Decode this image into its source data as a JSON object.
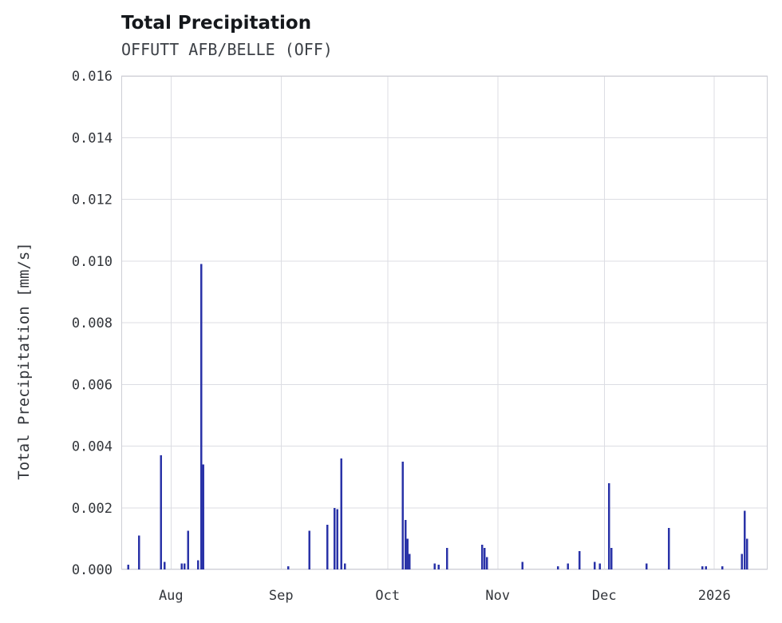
{
  "header": {
    "title": "Total Precipitation",
    "subtitle": "OFFUTT AFB/BELLE (OFF)"
  },
  "chart_data": {
    "type": "bar",
    "title": "Total Precipitation",
    "subtitle": "OFFUTT AFB/BELLE (OFF)",
    "xlabel": "",
    "ylabel": "Total Precipitation [mm/s]",
    "ylim": [
      0,
      0.016
    ],
    "grid": true,
    "legend": "none",
    "bar_color": "#2a33a8",
    "grid_color": "#dcdde3",
    "spine_color": "#cdced5",
    "tick_color": "#33363b",
    "x_domain_days": [
      0,
      182
    ],
    "x_ticks": [
      {
        "label": "Aug",
        "day": 14
      },
      {
        "label": "Sep",
        "day": 45
      },
      {
        "label": "Oct",
        "day": 75
      },
      {
        "label": "Nov",
        "day": 106
      },
      {
        "label": "Dec",
        "day": 136
      },
      {
        "label": "2026",
        "day": 167
      }
    ],
    "y_ticks": [
      {
        "label": "0.000",
        "value": 0.0
      },
      {
        "label": "0.002",
        "value": 0.002
      },
      {
        "label": "0.004",
        "value": 0.004
      },
      {
        "label": "0.006",
        "value": 0.006
      },
      {
        "label": "0.008",
        "value": 0.008
      },
      {
        "label": "0.010",
        "value": 0.01
      },
      {
        "label": "0.012",
        "value": 0.012
      },
      {
        "label": "0.014",
        "value": 0.014
      },
      {
        "label": "0.016",
        "value": 0.016
      }
    ],
    "points": [
      {
        "day": 2.0,
        "value": 0.00015
      },
      {
        "day": 5.0,
        "value": 0.0011
      },
      {
        "day": 11.2,
        "value": 0.0037
      },
      {
        "day": 12.2,
        "value": 0.00025
      },
      {
        "day": 17.0,
        "value": 0.0002
      },
      {
        "day": 17.8,
        "value": 0.0002
      },
      {
        "day": 18.8,
        "value": 0.00125
      },
      {
        "day": 21.6,
        "value": 0.0003
      },
      {
        "day": 22.5,
        "value": 0.0099
      },
      {
        "day": 23.1,
        "value": 0.0034
      },
      {
        "day": 47.0,
        "value": 0.0001
      },
      {
        "day": 53.0,
        "value": 0.00125
      },
      {
        "day": 58.0,
        "value": 0.00145
      },
      {
        "day": 60.0,
        "value": 0.002
      },
      {
        "day": 60.8,
        "value": 0.00195
      },
      {
        "day": 62.0,
        "value": 0.0036
      },
      {
        "day": 63.0,
        "value": 0.0002
      },
      {
        "day": 79.3,
        "value": 0.0035
      },
      {
        "day": 80.0,
        "value": 0.0016
      },
      {
        "day": 80.6,
        "value": 0.001
      },
      {
        "day": 81.2,
        "value": 0.0005
      },
      {
        "day": 88.3,
        "value": 0.0002
      },
      {
        "day": 89.4,
        "value": 0.00015
      },
      {
        "day": 91.7,
        "value": 0.0007
      },
      {
        "day": 101.6,
        "value": 0.0008
      },
      {
        "day": 102.3,
        "value": 0.0007
      },
      {
        "day": 103.0,
        "value": 0.0004
      },
      {
        "day": 113.0,
        "value": 0.00025
      },
      {
        "day": 123.0,
        "value": 0.0001
      },
      {
        "day": 125.8,
        "value": 0.0002
      },
      {
        "day": 129.0,
        "value": 0.0006
      },
      {
        "day": 133.3,
        "value": 0.00025
      },
      {
        "day": 134.8,
        "value": 0.0002
      },
      {
        "day": 137.3,
        "value": 0.0028
      },
      {
        "day": 138.0,
        "value": 0.0007
      },
      {
        "day": 147.9,
        "value": 0.0002
      },
      {
        "day": 154.2,
        "value": 0.00135
      },
      {
        "day": 163.6,
        "value": 0.0001
      },
      {
        "day": 164.6,
        "value": 0.0001
      },
      {
        "day": 169.2,
        "value": 0.0001
      },
      {
        "day": 174.8,
        "value": 0.0005
      },
      {
        "day": 175.5,
        "value": 0.0019
      },
      {
        "day": 176.2,
        "value": 0.001
      }
    ]
  }
}
